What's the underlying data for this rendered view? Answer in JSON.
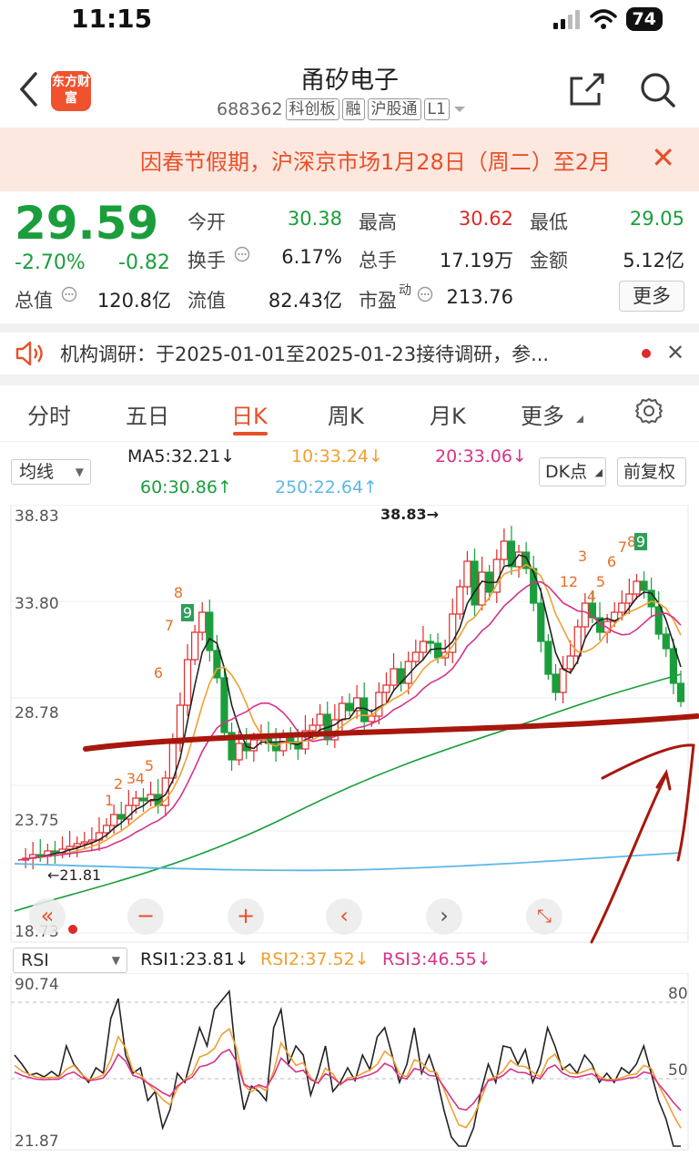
{
  "status": {
    "time": "11:15",
    "battery": "74"
  },
  "header": {
    "logo": "东方财富",
    "name": "甬矽电子",
    "code": "688362",
    "tags": [
      "科创板",
      "融",
      "沪股通",
      "L1"
    ]
  },
  "notice": {
    "text": "因春节假期，沪深京市场1月28日（周二）至2月"
  },
  "quote": {
    "price": "29.59",
    "pct": "-2.70%",
    "chg": "-0.82",
    "rows": [
      [
        {
          "l": "今开",
          "v": "30.38"
        },
        {
          "l": "最高",
          "v": "30.62"
        },
        {
          "l": "最低",
          "v": "29.05"
        }
      ],
      [
        {
          "l": "换手",
          "v": "6.17%"
        },
        {
          "l": "总手",
          "v": "17.19万"
        },
        {
          "l": "金额",
          "v": "5.12亿"
        }
      ]
    ],
    "row3": {
      "l1": "总值",
      "v1": "120.8亿",
      "l2": "流值",
      "v2": "82.43亿",
      "l3": "市盈",
      "l3_sup": "动",
      "v3": "213.76"
    },
    "more": "更多"
  },
  "research": {
    "text": "机构调研：于2025-01-01至2025-01-23接待调研，参..."
  },
  "tabs": [
    "分时",
    "五日",
    "日K",
    "周K",
    "月K",
    "更多"
  ],
  "indicator": {
    "select": "均线",
    "ma5": "MA5:32.21↓",
    "ma10": "10:33.24↓",
    "ma20": "20:33.06↓",
    "ma60": "60:30.86↑",
    "ma250": "250:22.64↑",
    "dk": "DK点",
    "fq": "前复权"
  },
  "kline": {
    "y_labels": [
      "38.83",
      "33.80",
      "28.78",
      "23.75",
      "18.73"
    ],
    "max_label": "38.83→",
    "min_label": "←21.81",
    "seq_numbers": [
      "1",
      "2",
      "3",
      "4",
      "5",
      "6",
      "7",
      "8",
      "9",
      "1",
      "2",
      "3",
      "4",
      "5",
      "6",
      "7",
      "8",
      "9"
    ]
  },
  "rsi": {
    "select": "RSI",
    "rsi1": "RSI1:23.81↓",
    "rsi2": "RSI2:37.52↓",
    "rsi3": "RSI3:46.55↓",
    "y_top": "90.74",
    "y_bottom": "21.87",
    "level_80": "80",
    "level_50": "50"
  },
  "colors": {
    "up": "#e02828",
    "down": "#1a9e3c",
    "accent": "#e8502a"
  }
}
